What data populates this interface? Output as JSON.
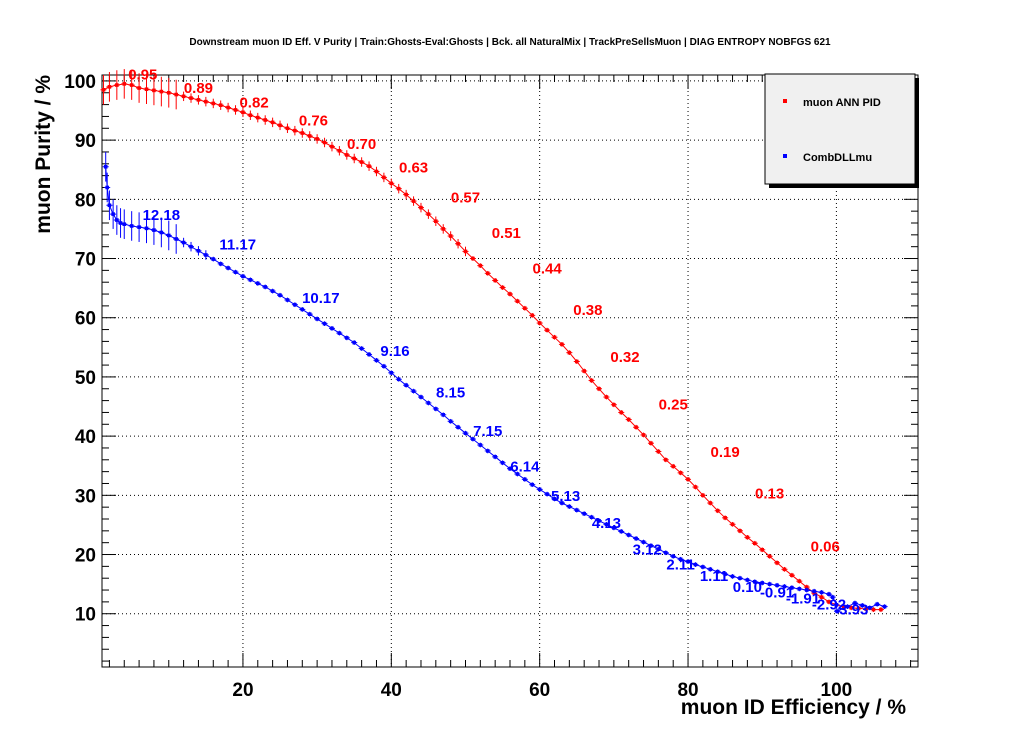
{
  "chart_data": {
    "type": "line",
    "title": "Downstream muon ID Eff. V Purity | Train:Ghosts-Eval:Ghosts | Bck. all NaturalMix | TrackPreSellsMuon | DIAG ENTROPY NOBFGS 621",
    "xlabel": "muon ID Efficiency / %",
    "ylabel": "muon Purity / %",
    "xlim": [
      1,
      111
    ],
    "ylim": [
      1,
      101
    ],
    "xticks": [
      20,
      40,
      60,
      80,
      100
    ],
    "yticks": [
      10,
      20,
      30,
      40,
      50,
      60,
      70,
      80,
      90,
      100
    ],
    "grid": true,
    "legend_position": "top-right",
    "series": [
      {
        "name": "muon ANN PID",
        "color": "#ff0000",
        "points": [
          [
            1.2,
            98.5
          ],
          [
            2,
            99
          ],
          [
            3,
            99.3
          ],
          [
            4,
            99.5
          ],
          [
            5,
            99.3
          ],
          [
            6,
            98.8
          ],
          [
            7,
            98.6
          ],
          [
            8,
            98.4
          ],
          [
            9,
            98.2
          ],
          [
            10,
            98.0
          ],
          [
            11,
            97.7
          ],
          [
            12,
            97.4
          ],
          [
            13,
            97.1
          ],
          [
            14,
            96.8
          ],
          [
            15,
            96.5
          ],
          [
            16,
            96.2
          ],
          [
            17,
            95.9
          ],
          [
            18,
            95.5
          ],
          [
            19,
            95.1
          ],
          [
            20,
            94.7
          ],
          [
            21,
            94.2
          ],
          [
            22,
            93.8
          ],
          [
            23,
            93.4
          ],
          [
            24,
            93.0
          ],
          [
            25,
            92.5
          ],
          [
            26,
            92.0
          ],
          [
            27,
            91.6
          ],
          [
            28,
            91.2
          ],
          [
            29,
            90.7
          ],
          [
            30,
            90.2
          ],
          [
            31,
            89.6
          ],
          [
            32,
            88.9
          ],
          [
            33,
            88.2
          ],
          [
            34,
            87.5
          ],
          [
            35,
            86.9
          ],
          [
            36,
            86.3
          ],
          [
            37,
            85.6
          ],
          [
            38,
            84.7
          ],
          [
            39,
            83.7
          ],
          [
            40,
            82.7
          ],
          [
            41,
            81.8
          ],
          [
            42,
            80.8
          ],
          [
            43,
            79.7
          ],
          [
            44,
            78.6
          ],
          [
            45,
            77.5
          ],
          [
            46,
            76.3
          ],
          [
            47,
            75.0
          ],
          [
            48,
            73.8
          ],
          [
            49,
            72.5
          ],
          [
            50,
            71.2
          ],
          [
            51,
            70.0
          ],
          [
            52,
            68.8
          ],
          [
            53,
            67.5
          ],
          [
            54,
            66.3
          ],
          [
            55,
            65.1
          ],
          [
            56,
            64.0
          ],
          [
            57,
            62.8
          ],
          [
            58,
            61.6
          ],
          [
            59,
            60.4
          ],
          [
            60,
            59.1
          ],
          [
            61,
            57.9
          ],
          [
            62,
            56.7
          ],
          [
            63,
            55.5
          ],
          [
            64,
            54.1
          ],
          [
            65,
            52.6
          ],
          [
            66,
            51.0
          ],
          [
            67,
            49.4
          ],
          [
            68,
            48.0
          ],
          [
            69,
            46.6
          ],
          [
            70,
            45.3
          ],
          [
            71,
            44.0
          ],
          [
            72,
            42.8
          ],
          [
            73,
            41.5
          ],
          [
            74,
            40.2
          ],
          [
            75,
            38.8
          ],
          [
            76,
            37.4
          ],
          [
            77,
            36.0
          ],
          [
            78,
            34.9
          ],
          [
            79,
            33.8
          ],
          [
            80,
            32.7
          ],
          [
            81,
            31.4
          ],
          [
            82,
            30.0
          ],
          [
            83,
            28.7
          ],
          [
            84,
            27.4
          ],
          [
            85,
            26.2
          ],
          [
            86,
            25.1
          ],
          [
            87,
            24.0
          ],
          [
            88,
            22.9
          ],
          [
            89,
            21.9
          ],
          [
            90,
            20.8
          ],
          [
            91,
            19.7
          ],
          [
            92,
            18.6
          ],
          [
            93,
            17.5
          ],
          [
            94,
            16.5
          ],
          [
            95,
            15.5
          ],
          [
            96,
            14.5
          ],
          [
            97,
            13.5
          ],
          [
            98,
            12.8
          ],
          [
            99,
            12.0
          ],
          [
            100,
            11.5
          ],
          [
            101,
            11.2
          ],
          [
            102,
            11.0
          ],
          [
            103,
            10.9
          ],
          [
            104,
            10.8
          ],
          [
            105,
            10.7
          ],
          [
            106,
            10.7
          ]
        ],
        "labels": [
          {
            "text": "0.95",
            "x": 6.5,
            "y": 100.2
          },
          {
            "text": "0.89",
            "x": 14,
            "y": 98.0
          },
          {
            "text": "0.82",
            "x": 21.5,
            "y": 95.5
          },
          {
            "text": "0.76",
            "x": 29.5,
            "y": 92.5
          },
          {
            "text": "0.70",
            "x": 36,
            "y": 88.5
          },
          {
            "text": "0.63",
            "x": 43,
            "y": 84.5
          },
          {
            "text": "0.57",
            "x": 50,
            "y": 79.5
          },
          {
            "text": "0.51",
            "x": 55.5,
            "y": 73.5
          },
          {
            "text": "0.44",
            "x": 61,
            "y": 67.5
          },
          {
            "text": "0.38",
            "x": 66.5,
            "y": 60.5
          },
          {
            "text": "0.32",
            "x": 71.5,
            "y": 52.5
          },
          {
            "text": "0.25",
            "x": 78,
            "y": 44.5
          },
          {
            "text": "0.19",
            "x": 85,
            "y": 36.5
          },
          {
            "text": "0.13",
            "x": 91,
            "y": 29.5
          },
          {
            "text": "0.06",
            "x": 98.5,
            "y": 20.5
          }
        ]
      },
      {
        "name": "CombDLLmu",
        "color": "#0000ff",
        "points": [
          [
            1.5,
            85.5
          ],
          [
            1.7,
            82
          ],
          [
            2,
            79
          ],
          [
            2.5,
            77.5
          ],
          [
            3,
            76.5
          ],
          [
            3.5,
            76
          ],
          [
            4,
            75.8
          ],
          [
            5,
            75.5
          ],
          [
            6,
            75.3
          ],
          [
            7,
            75.1
          ],
          [
            8,
            74.8
          ],
          [
            9,
            74.4
          ],
          [
            10,
            73.9
          ],
          [
            11,
            73.3
          ],
          [
            12,
            72.7
          ],
          [
            13,
            72.0
          ],
          [
            14,
            71.3
          ],
          [
            15,
            70.6
          ],
          [
            16,
            69.9
          ],
          [
            17,
            69.1
          ],
          [
            18,
            68.4
          ],
          [
            19,
            67.7
          ],
          [
            20,
            67.0
          ],
          [
            21,
            66.4
          ],
          [
            22,
            65.8
          ],
          [
            23,
            65.2
          ],
          [
            24,
            64.5
          ],
          [
            25,
            63.8
          ],
          [
            26,
            63.0
          ],
          [
            27,
            62.2
          ],
          [
            28,
            61.4
          ],
          [
            29,
            60.6
          ],
          [
            30,
            59.8
          ],
          [
            31,
            59.0
          ],
          [
            32,
            58.2
          ],
          [
            33,
            57.4
          ],
          [
            34,
            56.6
          ],
          [
            35,
            55.8
          ],
          [
            36,
            54.8
          ],
          [
            37,
            53.8
          ],
          [
            38,
            52.8
          ],
          [
            39,
            51.8
          ],
          [
            40,
            50.7
          ],
          [
            41,
            49.6
          ],
          [
            42,
            48.6
          ],
          [
            43,
            47.6
          ],
          [
            44,
            46.6
          ],
          [
            45,
            45.6
          ],
          [
            46,
            44.6
          ],
          [
            47,
            43.6
          ],
          [
            48,
            42.5
          ],
          [
            49,
            41.5
          ],
          [
            50,
            40.5
          ],
          [
            51,
            39.5
          ],
          [
            52,
            38.5
          ],
          [
            53,
            37.5
          ],
          [
            54,
            36.5
          ],
          [
            55,
            35.5
          ],
          [
            56,
            34.5
          ],
          [
            57,
            33.6
          ],
          [
            58,
            32.7
          ],
          [
            59,
            31.8
          ],
          [
            60,
            31.0
          ],
          [
            61,
            30.2
          ],
          [
            62,
            29.4
          ],
          [
            63,
            28.7
          ],
          [
            64,
            28.1
          ],
          [
            65,
            27.5
          ],
          [
            66,
            26.9
          ],
          [
            67,
            26.3
          ],
          [
            68,
            25.7
          ],
          [
            69,
            25.1
          ],
          [
            70,
            24.5
          ],
          [
            71,
            23.9
          ],
          [
            72,
            23.3
          ],
          [
            73,
            22.7
          ],
          [
            74,
            22.1
          ],
          [
            75,
            21.5
          ],
          [
            76,
            20.9
          ],
          [
            77,
            20.3
          ],
          [
            78,
            19.7
          ],
          [
            79,
            19.2
          ],
          [
            80,
            18.8
          ],
          [
            81,
            18.3
          ],
          [
            82,
            17.9
          ],
          [
            83,
            17.5
          ],
          [
            84,
            17.1
          ],
          [
            85,
            16.7
          ],
          [
            86,
            16.3
          ],
          [
            87,
            16.0
          ],
          [
            88,
            15.7
          ],
          [
            89,
            15.4
          ],
          [
            90,
            15.2
          ],
          [
            91,
            15.0
          ],
          [
            92,
            14.8
          ],
          [
            93,
            14.6
          ],
          [
            94,
            14.4
          ],
          [
            95,
            14.2
          ],
          [
            96,
            14.0
          ],
          [
            97,
            13.8
          ],
          [
            98,
            13.6
          ],
          [
            99,
            13.3
          ],
          [
            99.5,
            12.8
          ],
          [
            100,
            11.5
          ],
          [
            100.1,
            10.4
          ],
          [
            101.5,
            11.2
          ],
          [
            102.5,
            11.8
          ],
          [
            103.5,
            11.4
          ],
          [
            104.5,
            11.0
          ],
          [
            105.5,
            11.6
          ],
          [
            106.5,
            11.2
          ]
        ],
        "labels": [
          {
            "text": "12.18",
            "x": 9,
            "y": 76.5
          },
          {
            "text": "11.17",
            "x": 19.3,
            "y": 71.5
          },
          {
            "text": "10.17",
            "x": 30.5,
            "y": 62.5
          },
          {
            "text": "9.16",
            "x": 40.5,
            "y": 53.5
          },
          {
            "text": "8.15",
            "x": 48,
            "y": 46.5
          },
          {
            "text": "7.15",
            "x": 53,
            "y": 40.0
          },
          {
            "text": "6.14",
            "x": 58,
            "y": 34.0
          },
          {
            "text": "5.13",
            "x": 63.5,
            "y": 29.0
          },
          {
            "text": "4.13",
            "x": 69,
            "y": 24.5
          },
          {
            "text": "3.12",
            "x": 74.5,
            "y": 20.0
          },
          {
            "text": "2.11",
            "x": 79,
            "y": 17.5
          },
          {
            "text": "1.11",
            "x": 83.5,
            "y": 15.5
          },
          {
            "text": "0.10",
            "x": 88,
            "y": 13.7
          },
          {
            "text": "-0.91",
            "x": 92,
            "y": 12.7
          },
          {
            "text": "-1.91",
            "x": 95.5,
            "y": 11.7
          },
          {
            "text": "-2.92",
            "x": 99,
            "y": 10.7
          },
          {
            "text": "-3.93",
            "x": 102,
            "y": 9.9
          }
        ]
      }
    ]
  }
}
